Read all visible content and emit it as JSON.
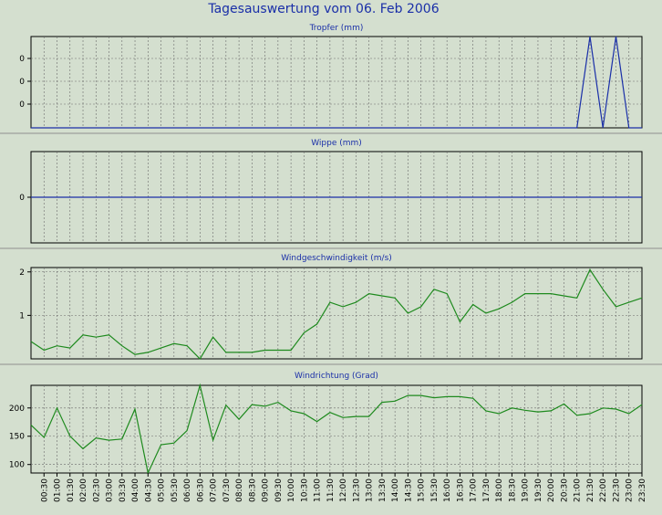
{
  "page_title": "Tagesauswertung vom 06. Feb 2006",
  "colors": {
    "background": "#d4dfcf",
    "plot_background": "#d4dfcf",
    "grid": "#6b6b6b",
    "border": "#000000",
    "title": "#1a2fa8",
    "series_blue": "#1a2fa8",
    "series_green": "#1e8a1e"
  },
  "time_ticks": [
    "00:30",
    "01:00",
    "01:30",
    "02:00",
    "02:30",
    "03:00",
    "03:30",
    "04:00",
    "04:30",
    "05:00",
    "05:30",
    "06:00",
    "06:30",
    "07:00",
    "07:30",
    "08:00",
    "08:30",
    "09:00",
    "09:30",
    "10:00",
    "10:30",
    "11:00",
    "11:30",
    "12:00",
    "12:30",
    "13:00",
    "13:30",
    "14:00",
    "14:30",
    "15:00",
    "15:30",
    "16:00",
    "16:30",
    "17:00",
    "17:30",
    "18:00",
    "18:30",
    "19:00",
    "19:30",
    "20:00",
    "20:30",
    "21:00",
    "21:30",
    "22:00",
    "22:30",
    "23:00",
    "23:30"
  ],
  "chart_data": [
    {
      "type": "line",
      "title": "Tropfer (mm)",
      "ytick_labels": [
        "0",
        "0",
        "0"
      ],
      "grid": true,
      "note": "y values are in unit steps; tick labels printed as 0",
      "ylim": [
        0,
        4
      ],
      "series": [
        {
          "color": "#1a2fa8",
          "values": [
            0,
            0,
            0,
            0,
            0,
            0,
            0,
            0,
            0,
            0,
            0,
            0,
            0,
            0,
            0,
            0,
            0,
            0,
            0,
            0,
            0,
            0,
            0,
            0,
            0,
            0,
            0,
            0,
            0,
            0,
            0,
            0,
            0,
            0,
            0,
            0,
            0,
            0,
            0,
            0,
            0,
            0,
            0,
            4,
            0,
            4,
            0,
            0
          ]
        }
      ]
    },
    {
      "type": "line",
      "title": "Wippe (mm)",
      "ytick_labels": [
        "0"
      ],
      "grid": true,
      "ylim": [
        -1,
        1
      ],
      "series": [
        {
          "color": "#1a2fa8",
          "values": [
            0,
            0,
            0,
            0,
            0,
            0,
            0,
            0,
            0,
            0,
            0,
            0,
            0,
            0,
            0,
            0,
            0,
            0,
            0,
            0,
            0,
            0,
            0,
            0,
            0,
            0,
            0,
            0,
            0,
            0,
            0,
            0,
            0,
            0,
            0,
            0,
            0,
            0,
            0,
            0,
            0,
            0,
            0,
            0,
            0,
            0,
            0,
            0
          ]
        }
      ]
    },
    {
      "type": "line",
      "title": "Windgeschwindigkeit (m/s)",
      "ytick_labels": [
        "1",
        "2"
      ],
      "grid": true,
      "ylim": [
        0,
        2.1
      ],
      "series": [
        {
          "color": "#1e8a1e",
          "values": [
            0.4,
            0.2,
            0.3,
            0.25,
            0.55,
            0.5,
            0.55,
            0.3,
            0.1,
            0.15,
            0.25,
            0.35,
            0.3,
            0.0,
            0.5,
            0.15,
            0.15,
            0.15,
            0.2,
            0.2,
            0.2,
            0.6,
            0.8,
            1.3,
            1.2,
            1.3,
            1.5,
            1.45,
            1.4,
            1.05,
            1.2,
            1.6,
            1.5,
            0.85,
            1.25,
            1.05,
            1.15,
            1.3,
            1.5,
            1.5,
            1.5,
            1.45,
            1.4,
            2.05,
            1.6,
            1.2,
            1.3,
            1.4
          ]
        }
      ]
    },
    {
      "type": "line",
      "title": "Windrichtung (Grad)",
      "ytick_labels": [
        "100",
        "150",
        "200"
      ],
      "grid": true,
      "ylim": [
        85,
        240
      ],
      "series": [
        {
          "color": "#1e8a1e",
          "values": [
            170,
            148,
            200,
            150,
            128,
            147,
            143,
            145,
            198,
            85,
            135,
            138,
            160,
            240,
            143,
            205,
            180,
            206,
            203,
            210,
            195,
            190,
            176,
            192,
            183,
            185,
            185,
            210,
            212,
            222,
            222,
            218,
            220,
            220,
            217,
            195,
            190,
            200,
            196,
            193,
            195,
            207,
            187,
            190,
            200,
            198,
            190,
            206
          ]
        }
      ]
    }
  ]
}
